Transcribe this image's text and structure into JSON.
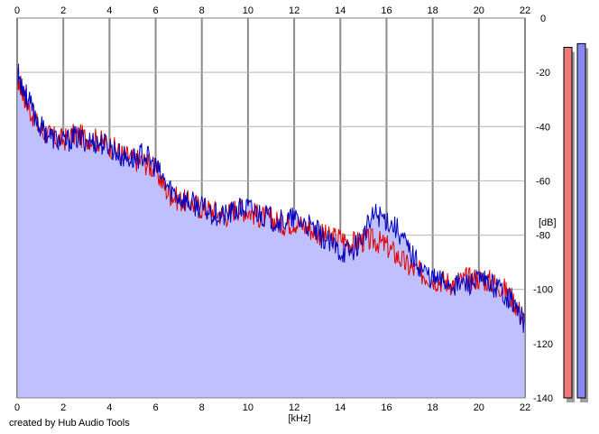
{
  "chart_data": {
    "type": "area",
    "x_unit_label": "[kHz]",
    "y_unit_label": "[dB]",
    "credit": "created by Hub Audio Tools",
    "xlim": [
      0,
      22
    ],
    "ylim": [
      -140,
      0
    ],
    "x_ticks": [
      "0",
      "2",
      "4",
      "6",
      "8",
      "10",
      "12",
      "14",
      "16",
      "18",
      "20",
      "22"
    ],
    "y_ticks": [
      "0",
      "-20",
      "-40",
      "-60",
      "-80",
      "-100",
      "-120",
      "-140"
    ],
    "grid": true,
    "series": [
      {
        "color": "#e00000",
        "x": [
          0,
          0.2,
          0.5,
          1,
          1.5,
          2,
          2.5,
          3,
          3.5,
          4,
          4.5,
          5,
          5.5,
          6,
          6.5,
          7,
          7.5,
          8,
          8.5,
          9,
          9.5,
          10,
          10.5,
          11,
          11.5,
          12,
          12.5,
          13,
          13.5,
          14,
          14.5,
          15,
          15.5,
          16,
          16.5,
          17,
          17.5,
          18,
          18.5,
          19,
          19.5,
          20,
          20.5,
          21,
          21.5,
          22
        ],
        "y": [
          -22,
          -26,
          -33,
          -41,
          -44,
          -45,
          -43,
          -44,
          -45,
          -47,
          -50,
          -52,
          -53,
          -56,
          -64,
          -67,
          -68,
          -70,
          -71,
          -73,
          -70,
          -71,
          -73,
          -74,
          -76,
          -75,
          -77,
          -79,
          -81,
          -81,
          -83,
          -82,
          -82,
          -84,
          -88,
          -92,
          -94,
          -96,
          -97,
          -98,
          -96,
          -96,
          -97,
          -99,
          -104,
          -112
        ]
      },
      {
        "color": "#0000c0",
        "x": [
          0,
          0.2,
          0.5,
          1,
          1.5,
          2,
          2.5,
          3,
          3.5,
          4,
          4.5,
          5,
          5.5,
          6,
          6.5,
          7,
          7.5,
          8,
          8.5,
          9,
          9.5,
          10,
          10.5,
          11,
          11.5,
          12,
          12.5,
          13,
          13.5,
          14,
          14.5,
          15,
          15.5,
          16,
          16.5,
          17,
          17.5,
          18,
          18.5,
          19,
          19.5,
          20,
          20.5,
          21,
          21.5,
          22
        ],
        "y": [
          -20,
          -24,
          -31,
          -40,
          -44,
          -46,
          -44,
          -45,
          -46,
          -47,
          -51,
          -52,
          -50,
          -55,
          -62,
          -66,
          -68,
          -70,
          -72,
          -73,
          -71,
          -70,
          -72,
          -74,
          -75,
          -74,
          -76,
          -79,
          -83,
          -86,
          -86,
          -80,
          -72,
          -74,
          -78,
          -86,
          -92,
          -96,
          -97,
          -98,
          -98,
          -97,
          -98,
          -100,
          -105,
          -113
        ]
      }
    ],
    "fill_color": "#c0c0ff",
    "meters": [
      {
        "color": "#ef7878",
        "level": 0.95
      },
      {
        "color": "#8888f0",
        "level": 0.96
      }
    ]
  }
}
